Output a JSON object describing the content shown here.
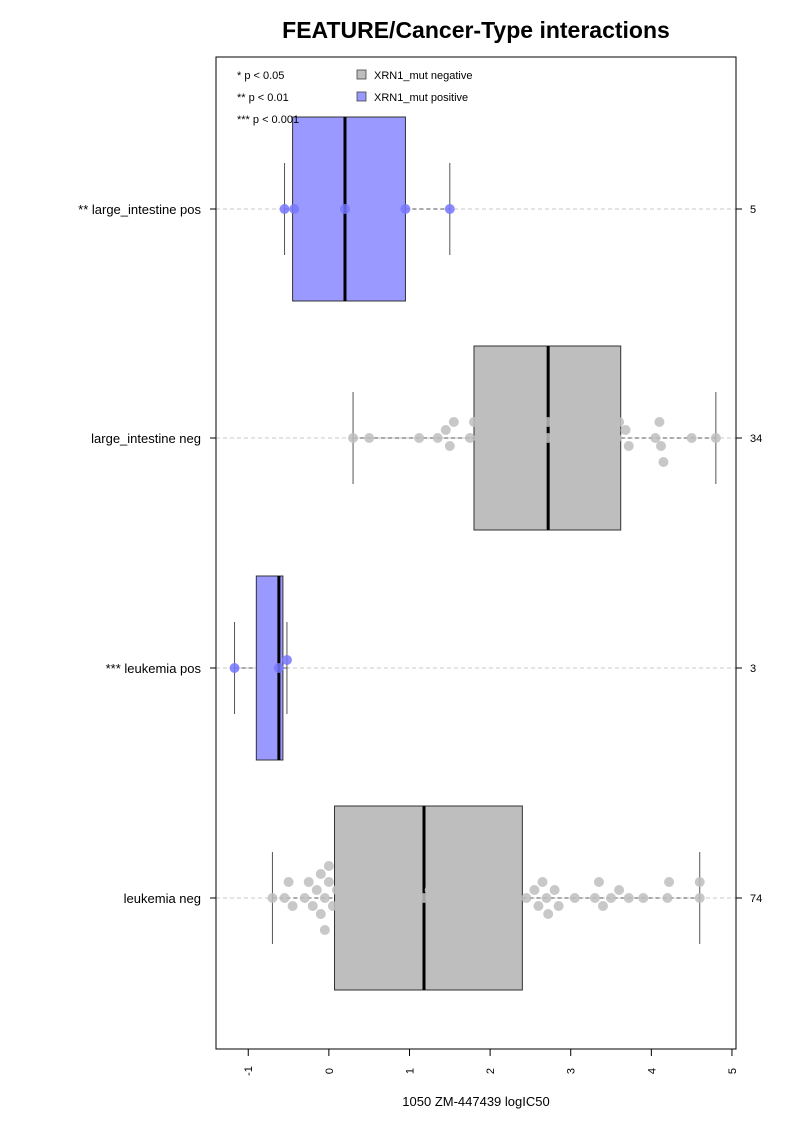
{
  "chart_data": {
    "type": "boxplot",
    "title": "FEATURE/Cancer-Type interactions",
    "xlabel": "1050 ZM-447439 logIC50",
    "xlim": [
      -1.4,
      5.05
    ],
    "xticks": [
      "-1",
      "0",
      "1",
      "2",
      "3",
      "4",
      "5"
    ],
    "grid": false,
    "legend": {
      "placement": "top-left",
      "significance": [
        "* p < 0.05",
        "** p < 0.01",
        "*** p < 0.001"
      ],
      "entries": [
        {
          "label": "XRN1_mut negative",
          "color": "#bebebe"
        },
        {
          "label": "XRN1_mut positive",
          "color": "#9999ff"
        }
      ]
    },
    "groups": [
      {
        "label": "** large_intestine pos",
        "n": "5",
        "color": "#9999ff",
        "point_color": "#7777ff",
        "box": {
          "q1": -0.45,
          "median": 0.2,
          "q3": 0.95,
          "whisker_low": -0.55,
          "whisker_high": 1.5
        },
        "points": [
          -0.55,
          -0.43,
          0.2,
          0.95,
          1.5
        ]
      },
      {
        "label": "large_intestine neg",
        "n": "34",
        "color": "#bebebe",
        "point_color": "#bebebe",
        "box": {
          "q1": 1.8,
          "median": 2.72,
          "q3": 3.62,
          "whisker_low": 0.3,
          "whisker_high": 4.8
        },
        "points": [
          0.3,
          0.5,
          1.12,
          1.35,
          1.45,
          1.5,
          1.55,
          1.75,
          1.8,
          1.98,
          2.05,
          2.08,
          2.12,
          2.25,
          2.38,
          2.45,
          2.72,
          2.72,
          2.95,
          3.0,
          3.0,
          3.05,
          3.22,
          3.25,
          3.57,
          3.6,
          3.68,
          3.72,
          4.05,
          4.1,
          4.12,
          4.15,
          4.5,
          4.8
        ]
      },
      {
        "label": "*** leukemia pos",
        "n": "3",
        "color": "#9999ff",
        "point_color": "#7777ff",
        "box": {
          "q1": -0.9,
          "median": -0.62,
          "q3": -0.57,
          "whisker_low": -1.17,
          "whisker_high": -0.52
        },
        "points": [
          -1.17,
          -0.62,
          -0.52
        ]
      },
      {
        "label": "leukemia neg",
        "n": "74",
        "color": "#bebebe",
        "point_color": "#bebebe",
        "box": {
          "q1": 0.07,
          "median": 1.18,
          "q3": 2.4,
          "whisker_low": -0.7,
          "whisker_high": 4.6
        },
        "points": [
          -0.7,
          -0.55,
          -0.5,
          -0.45,
          -0.3,
          -0.25,
          -0.2,
          -0.15,
          -0.1,
          -0.1,
          -0.05,
          -0.05,
          0.0,
          0.0,
          0.05,
          0.1,
          0.15,
          0.2,
          0.25,
          0.3,
          0.35,
          0.38,
          0.45,
          0.48,
          0.5,
          0.5,
          0.55,
          0.6,
          0.65,
          0.8,
          0.82,
          0.9,
          1.0,
          1.05,
          1.1,
          1.18,
          1.25,
          1.35,
          1.45,
          1.45,
          1.48,
          1.52,
          1.65,
          1.7,
          1.75,
          1.85,
          1.92,
          2.0,
          2.02,
          2.1,
          2.15,
          2.2,
          2.28,
          2.3,
          2.45,
          2.55,
          2.6,
          2.65,
          2.7,
          2.72,
          2.8,
          2.85,
          3.05,
          3.3,
          3.35,
          3.4,
          3.5,
          3.6,
          3.72,
          3.9,
          4.2,
          4.22,
          4.6,
          4.6
        ]
      }
    ]
  }
}
